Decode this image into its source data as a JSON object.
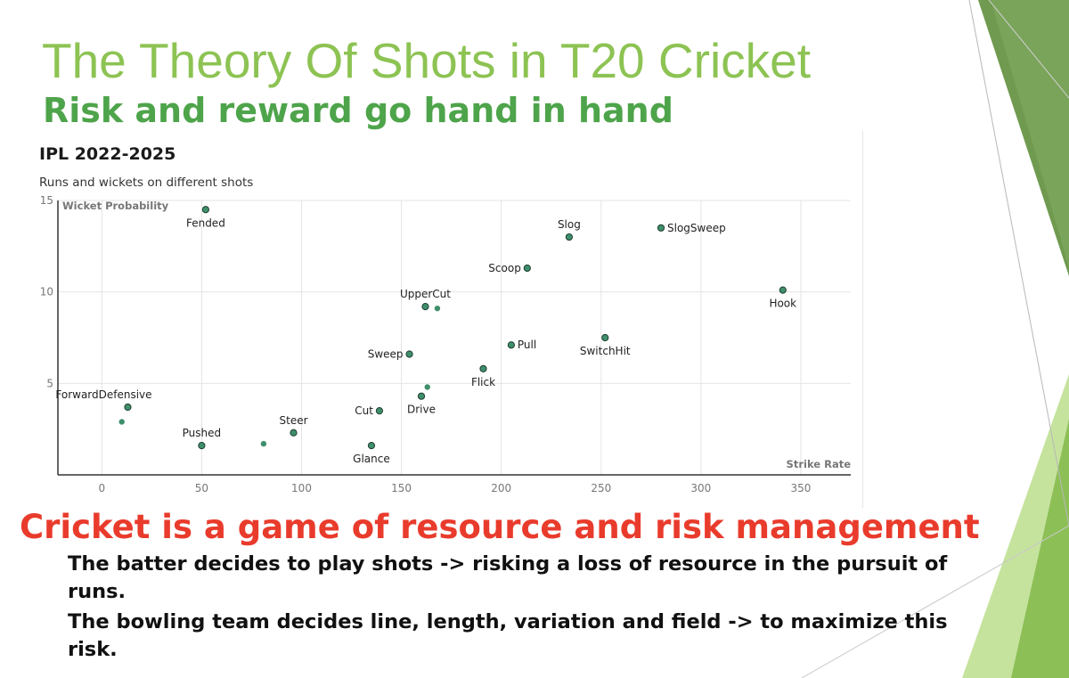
{
  "slide": {
    "title": "The Theory Of Shots in T20 Cricket",
    "subtitle": "Risk and reward go hand in hand",
    "headline": "Cricket is a game of resource and risk management",
    "paragraphs": [
      "The batter decides to play shots -> risking a loss of resource in the pursuit of runs.",
      "The bowling team decides line, length, variation and field -> to maximize this risk."
    ],
    "colors": {
      "title": "#8dc353",
      "subtitle": "#4ea44a",
      "headline": "#e93b2c",
      "decor_dark": "#6f9a4f",
      "decor_light": "#a8cf6b",
      "point": "#3f8f6c"
    }
  },
  "chart_data": {
    "type": "scatter",
    "title": "IPL 2022-2025",
    "subtitle": "Runs and wickets on different shots",
    "xlabel": "Strike Rate",
    "ylabel": "Wicket Probability",
    "xlim": [
      -22,
      375
    ],
    "ylim": [
      0,
      15
    ],
    "xticks": [
      0,
      50,
      100,
      150,
      200,
      250,
      300,
      350
    ],
    "yticks": [
      5,
      10,
      15
    ],
    "grid": true,
    "points": [
      {
        "label": "Fended",
        "x": 52,
        "y": 14.5
      },
      {
        "label": "Slog",
        "x": 234,
        "y": 13
      },
      {
        "label": "SlogSweep",
        "x": 280,
        "y": 13.5
      },
      {
        "label": "Scoop",
        "x": 213,
        "y": 11.3
      },
      {
        "label": "Hook",
        "x": 341,
        "y": 10.1
      },
      {
        "label": "UpperCut",
        "x": 162,
        "y": 9.2
      },
      {
        "label": "",
        "x": 168,
        "y": 9.1
      },
      {
        "label": "SwitchHit",
        "x": 252,
        "y": 7.5
      },
      {
        "label": "Pull",
        "x": 205,
        "y": 7.1
      },
      {
        "label": "Sweep",
        "x": 154,
        "y": 6.6
      },
      {
        "label": "Flick",
        "x": 191,
        "y": 5.8
      },
      {
        "label": "",
        "x": 163,
        "y": 4.8
      },
      {
        "label": "Drive",
        "x": 160,
        "y": 4.3
      },
      {
        "label": "ForwardDefensive",
        "x": 13,
        "y": 3.7
      },
      {
        "label": "Cut",
        "x": 139,
        "y": 3.5
      },
      {
        "label": "",
        "x": 10,
        "y": 2.9
      },
      {
        "label": "Steer",
        "x": 96,
        "y": 2.3
      },
      {
        "label": "Pushed",
        "x": 50,
        "y": 1.6
      },
      {
        "label": "",
        "x": 81,
        "y": 1.7
      },
      {
        "label": "Glance",
        "x": 135,
        "y": 1.6
      }
    ]
  }
}
